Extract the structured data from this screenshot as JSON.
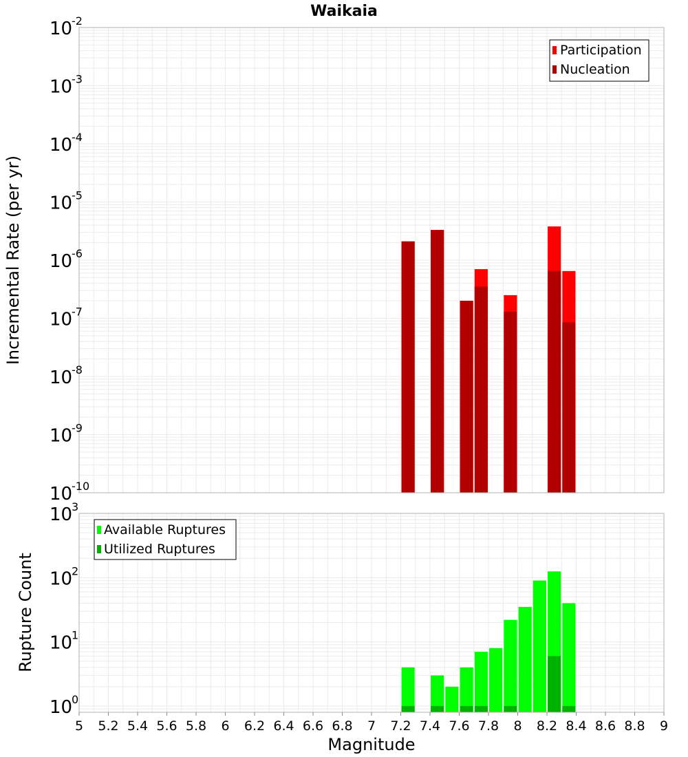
{
  "title": "Waikaia",
  "xlabel": "Magnitude",
  "x_ticks": [
    "5",
    "5.2",
    "5.4",
    "5.6",
    "5.8",
    "6",
    "6.2",
    "6.4",
    "6.6",
    "6.8",
    "7",
    "7.2",
    "7.4",
    "7.6",
    "7.8",
    "8",
    "8.2",
    "8.4",
    "8.6",
    "8.8",
    "9"
  ],
  "colors": {
    "participation": "#ff0000",
    "nucleation": "#b20000",
    "available": "#00ff00",
    "utilized": "#00b200",
    "grid": "#ebebeb",
    "frame": "#b0b0b0"
  },
  "chart_data": [
    {
      "type": "bar",
      "scale": "log",
      "title": "Waikaia",
      "xlabel": "Magnitude",
      "ylabel": "Incremental Rate (per yr)",
      "xlim": [
        5,
        9
      ],
      "ylim": [
        1e-10,
        0.01
      ],
      "y_tick_exponents": [
        "-10",
        "-9",
        "-8",
        "-7",
        "-6",
        "-5",
        "-4",
        "-3",
        "-2"
      ],
      "grid": true,
      "legend": "top-right",
      "x": [
        7.25,
        7.45,
        7.65,
        7.75,
        7.95,
        8.25,
        8.35
      ],
      "series": [
        {
          "name": "Participation",
          "values": [
            2.1e-06,
            3.3e-06,
            2e-07,
            7e-07,
            2.5e-07,
            3.8e-06,
            6.5e-07
          ]
        },
        {
          "name": "Nucleation",
          "values": [
            2.1e-06,
            3.3e-06,
            2e-07,
            3.5e-07,
            1.3e-07,
            6.5e-07,
            8.5e-08
          ]
        }
      ]
    },
    {
      "type": "bar",
      "scale": "log",
      "ylabel": "Rupture Count",
      "xlim": [
        5,
        9
      ],
      "ylim": [
        0.8,
        1000
      ],
      "y_tick_exponents": [
        "0",
        "1",
        "2",
        "3"
      ],
      "grid": true,
      "legend": "top-left",
      "x": [
        7.25,
        7.45,
        7.55,
        7.65,
        7.75,
        7.85,
        7.95,
        8.05,
        8.15,
        8.25,
        8.35
      ],
      "series": [
        {
          "name": "Available Ruptures",
          "values": [
            4,
            3,
            2,
            4,
            7,
            8,
            22,
            35,
            90,
            125,
            40
          ]
        },
        {
          "name": "Utilized Ruptures",
          "values": [
            1,
            1,
            0,
            1,
            1,
            0,
            1,
            0,
            0,
            6,
            1
          ]
        }
      ]
    }
  ]
}
